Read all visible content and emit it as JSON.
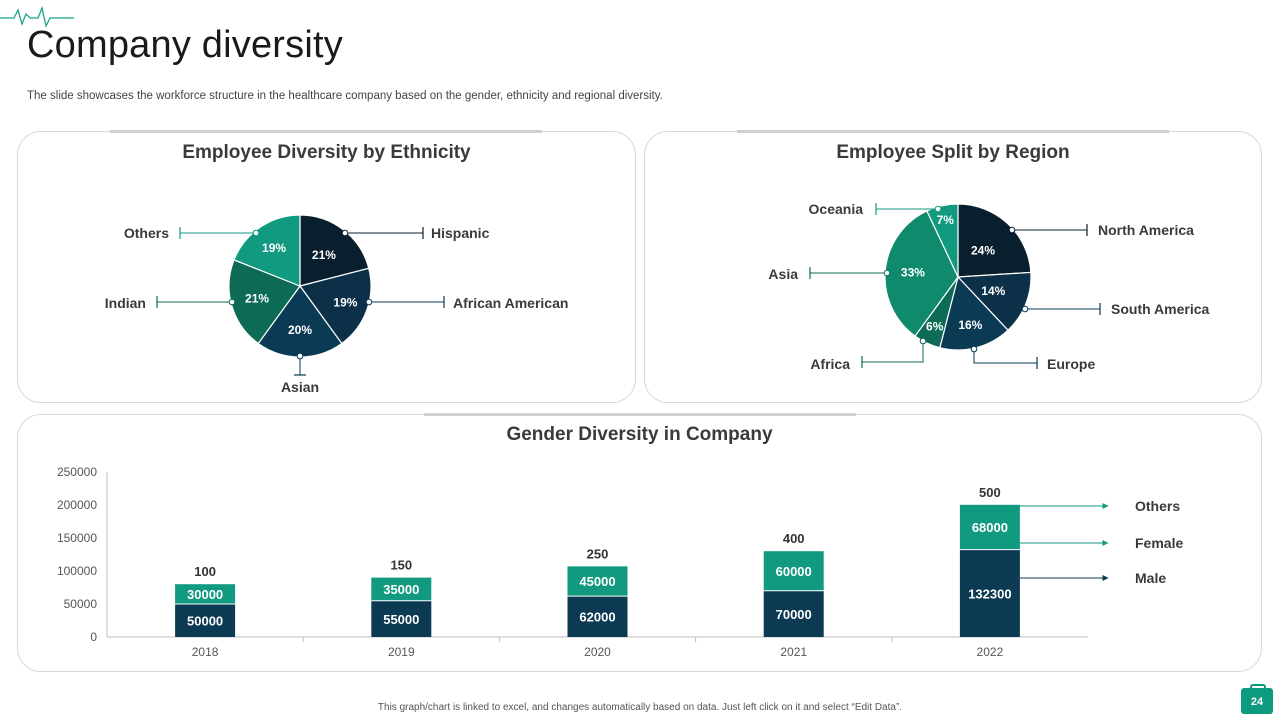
{
  "page": {
    "title": "Company diversity",
    "subtitle": "The slide showcases the workforce structure in the healthcare company based on the gender, ethnicity and regional diversity.",
    "footer": "This graph/chart is linked to excel, and changes automatically based on data. Just left click on it and select “Edit Data”.",
    "page_number": "24"
  },
  "colors": {
    "brand": "#0e9a7c",
    "dark1": "#0a1f2e",
    "dark2": "#0b3a55",
    "teal_dark": "#0d6b55",
    "teal_mid": "#0f8a6c",
    "bar_male": "#0c3a52",
    "bar_female": "#119a80"
  },
  "chart_data": [
    {
      "type": "pie",
      "title": "Employee Diversity by Ethnicity",
      "slices": [
        {
          "label": "Hispanic",
          "value": 21,
          "value_label": "21%",
          "color": "#0a1f2e"
        },
        {
          "label": "African American",
          "value": 19,
          "value_label": "19%",
          "color": "#0c3048"
        },
        {
          "label": "Asian",
          "value": 20,
          "value_label": "20%",
          "color": "#0b3a55"
        },
        {
          "label": "Indian",
          "value": 21,
          "value_label": "21%",
          "color": "#0d6b55"
        },
        {
          "label": "Others",
          "value": 19,
          "value_label": "19%",
          "color": "#119a80"
        }
      ]
    },
    {
      "type": "pie",
      "title": "Employee Split by Region",
      "slices": [
        {
          "label": "North America",
          "value": 24,
          "value_label": "24%",
          "color": "#0a1f2e"
        },
        {
          "label": "South America",
          "value": 14,
          "value_label": "14%",
          "color": "#0c3048"
        },
        {
          "label": "Europe",
          "value": 16,
          "value_label": "16%",
          "color": "#0b3a55"
        },
        {
          "label": "Africa",
          "value": 6,
          "value_label": "6%",
          "color": "#0d6b55"
        },
        {
          "label": "Asia",
          "value": 33,
          "value_label": "33%",
          "color": "#0f8a6c"
        },
        {
          "label": "Oceania",
          "value": 7,
          "value_label": "7%",
          "color": "#119a80"
        }
      ]
    },
    {
      "type": "bar",
      "stacked": true,
      "title": "Gender Diversity in Company",
      "categories": [
        "2018",
        "2019",
        "2020",
        "2021",
        "2022"
      ],
      "series": [
        {
          "name": "Male",
          "values": [
            50000,
            55000,
            62000,
            70000,
            132300
          ]
        },
        {
          "name": "Female",
          "values": [
            30000,
            35000,
            45000,
            60000,
            68000
          ]
        },
        {
          "name": "Others",
          "values": [
            100,
            150,
            250,
            400,
            500
          ]
        }
      ],
      "ylim": [
        0,
        250000
      ],
      "yticks": [
        "250000",
        "200000",
        "150000",
        "100000",
        "50000",
        "0"
      ],
      "legend": [
        "Others",
        "Female",
        "Male"
      ],
      "legend_position": "right"
    }
  ]
}
